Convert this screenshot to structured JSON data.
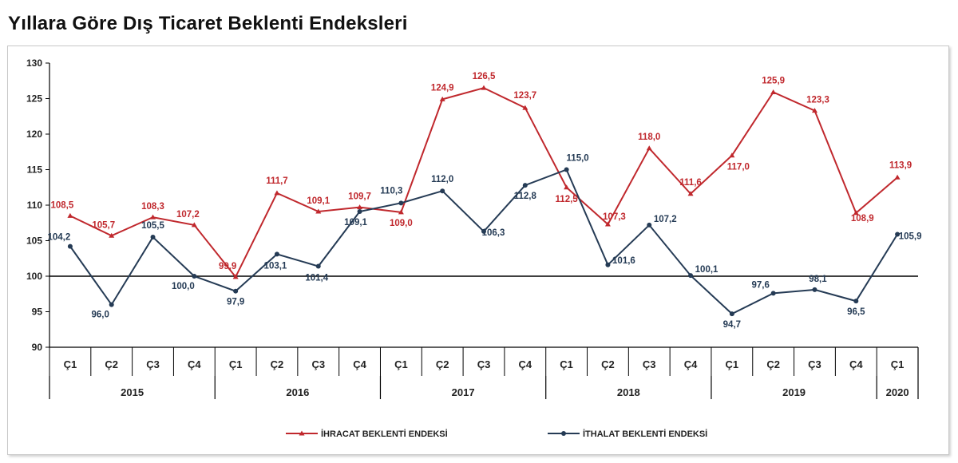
{
  "page_title": "Yıllara Göre Dış Ticaret Beklenti Endeksleri",
  "chart_data": {
    "type": "line",
    "title": "Yıllara Göre Dış Ticaret Beklenti Endeksleri",
    "ylim": [
      90,
      130
    ],
    "yticks": [
      90,
      95,
      100,
      105,
      110,
      115,
      120,
      125,
      130
    ],
    "reference_line": 100,
    "grid": false,
    "legend_position": "bottom",
    "categories": [
      "Ç1",
      "Ç2",
      "Ç3",
      "Ç4",
      "Ç1",
      "Ç2",
      "Ç3",
      "Ç4",
      "Ç1",
      "Ç2",
      "Ç3",
      "Ç4",
      "Ç1",
      "Ç2",
      "Ç3",
      "Ç4",
      "Ç1",
      "Ç2",
      "Ç3",
      "Ç4",
      "Ç1"
    ],
    "years": [
      {
        "label": "2015",
        "count": 4
      },
      {
        "label": "2016",
        "count": 4
      },
      {
        "label": "2017",
        "count": 4
      },
      {
        "label": "2018",
        "count": 4
      },
      {
        "label": "2019",
        "count": 4
      },
      {
        "label": "2020",
        "count": 1
      }
    ],
    "series": [
      {
        "name": "İHRACAT BEKLENTİ ENDEKSİ",
        "color": "#c0282d",
        "marker": "triangle",
        "values": [
          108.5,
          105.7,
          108.3,
          107.2,
          99.9,
          111.7,
          109.1,
          109.7,
          109.0,
          124.9,
          126.5,
          123.7,
          112.5,
          107.3,
          118.0,
          111.6,
          117.0,
          125.9,
          123.3,
          108.9,
          113.9
        ],
        "labels": [
          "108,5",
          "105,7",
          "108,3",
          "107,2",
          "99,9",
          "111,7",
          "109,1",
          "109,7",
          "109,0",
          "124,9",
          "126,5",
          "123,7",
          "112,5",
          "107,3",
          "118,0",
          "111,6",
          "117,0",
          "125,9",
          "123,3",
          "108,9",
          "113,9"
        ]
      },
      {
        "name": "İTHALAT BEKLENTİ ENDEKSİ",
        "color": "#253b55",
        "marker": "circle",
        "values": [
          104.2,
          96.0,
          105.5,
          100.0,
          97.9,
          103.1,
          101.4,
          109.1,
          110.3,
          112.0,
          106.3,
          112.8,
          115.0,
          101.6,
          107.2,
          100.1,
          94.7,
          97.6,
          98.1,
          96.5,
          105.9
        ],
        "labels": [
          "104,2",
          "96,0",
          "105,5",
          "100,0",
          "97,9",
          "103,1",
          "101,4",
          "109,1",
          "110,3",
          "112,0",
          "106,3",
          "112,8",
          "115,0",
          "101,6",
          "107,2",
          "100,1",
          "94,7",
          "97,6",
          "98,1",
          "96,5",
          "105,9"
        ]
      }
    ]
  }
}
